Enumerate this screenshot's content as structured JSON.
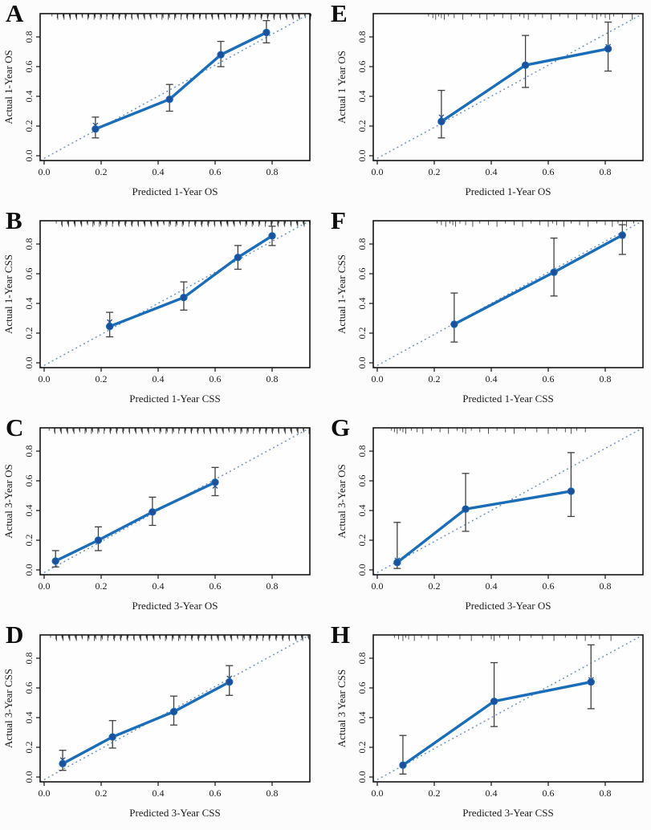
{
  "figure": {
    "colors": {
      "calibration_line": "#1a6db8",
      "point_fill": "#1c4f9c",
      "reference_dotted": "#6f94c9",
      "error_bar": "#404040",
      "axis": "#141414",
      "plot_background": "#fefefe",
      "page_background": "#fcfcfc"
    }
  },
  "chart_data": [
    {
      "type": "line",
      "letter": "A",
      "xlabel": "Predicted 1-Year OS",
      "ylabel": "Actual 1-Year OS",
      "xlim": [
        0,
        0.95
      ],
      "ylim": [
        0,
        0.95
      ],
      "x_tick_labels": [
        "0.0",
        "0.2",
        "0.4",
        "0.6",
        "0.8"
      ],
      "y_tick_labels": [
        "0.0",
        "0.2",
        "0.4",
        "0.6",
        "0.8"
      ],
      "reference_line": "identity (dotted)",
      "points": [
        {
          "x": 0.18,
          "y": 0.18,
          "lo": 0.12,
          "hi": 0.26,
          "bc": 0.205
        },
        {
          "x": 0.44,
          "y": 0.38,
          "lo": 0.3,
          "hi": 0.48,
          "bc": 0.38
        },
        {
          "x": 0.62,
          "y": 0.68,
          "lo": 0.6,
          "hi": 0.77,
          "bc": 0.68
        },
        {
          "x": 0.78,
          "y": 0.83,
          "lo": 0.76,
          "hi": 0.91,
          "bc": 0.83
        }
      ],
      "rug": {
        "dense": true,
        "start": 0.035,
        "end": 0.935,
        "count": 115
      }
    },
    {
      "type": "line",
      "letter": "B",
      "xlabel": "Predicted 1-Year CSS",
      "ylabel": "Actual 1-Year CSS",
      "xlim": [
        0,
        0.95
      ],
      "ylim": [
        0,
        0.95
      ],
      "x_tick_labels": [
        "0.0",
        "0.2",
        "0.4",
        "0.6",
        "0.8"
      ],
      "y_tick_labels": [
        "0.0",
        "0.2",
        "0.4",
        "0.6",
        "0.8"
      ],
      "reference_line": "identity (dotted)",
      "points": [
        {
          "x": 0.23,
          "y": 0.245,
          "lo": 0.175,
          "hi": 0.34,
          "bc": 0.275
        },
        {
          "x": 0.49,
          "y": 0.44,
          "lo": 0.355,
          "hi": 0.545,
          "bc": 0.44
        },
        {
          "x": 0.68,
          "y": 0.71,
          "lo": 0.63,
          "hi": 0.79,
          "bc": 0.71
        },
        {
          "x": 0.8,
          "y": 0.855,
          "lo": 0.79,
          "hi": 0.92,
          "bc": 0.855
        }
      ],
      "rug": {
        "dense": true,
        "start": 0.05,
        "end": 0.935,
        "count": 110
      }
    },
    {
      "type": "line",
      "letter": "C",
      "xlabel": "Predicted 3-Year OS",
      "ylabel": "Actual 3-Year OS",
      "xlim": [
        0,
        0.95
      ],
      "ylim": [
        0,
        0.95
      ],
      "x_tick_labels": [
        "0.0",
        "0.2",
        "0.4",
        "0.6",
        "0.8"
      ],
      "y_tick_labels": [
        "0.0",
        "0.2",
        "0.4",
        "0.6",
        "0.8"
      ],
      "reference_line": "identity (dotted)",
      "points": [
        {
          "x": 0.04,
          "y": 0.06,
          "lo": 0.02,
          "hi": 0.13,
          "bc": 0.06
        },
        {
          "x": 0.19,
          "y": 0.2,
          "lo": 0.13,
          "hi": 0.29,
          "bc": 0.2
        },
        {
          "x": 0.38,
          "y": 0.39,
          "lo": 0.3,
          "hi": 0.49,
          "bc": 0.39
        },
        {
          "x": 0.6,
          "y": 0.59,
          "lo": 0.5,
          "hi": 0.69,
          "bc": 0.565
        }
      ],
      "rug": {
        "dense": true,
        "start": 0.025,
        "end": 0.93,
        "count": 115
      }
    },
    {
      "type": "line",
      "letter": "D",
      "xlabel": "Predicted 3-Year CSS",
      "ylabel": "Actual 3-Year CSS",
      "xlim": [
        0,
        0.95
      ],
      "ylim": [
        0,
        0.95
      ],
      "x_tick_labels": [
        "0.0",
        "0.2",
        "0.4",
        "0.6",
        "0.8"
      ],
      "y_tick_labels": [
        "0.0",
        "0.2",
        "0.4",
        "0.6",
        "0.8"
      ],
      "reference_line": "identity (dotted)",
      "points": [
        {
          "x": 0.065,
          "y": 0.09,
          "lo": 0.045,
          "hi": 0.18,
          "bc": 0.115
        },
        {
          "x": 0.24,
          "y": 0.27,
          "lo": 0.195,
          "hi": 0.38,
          "bc": 0.27
        },
        {
          "x": 0.455,
          "y": 0.44,
          "lo": 0.35,
          "hi": 0.545,
          "bc": 0.44
        },
        {
          "x": 0.65,
          "y": 0.64,
          "lo": 0.55,
          "hi": 0.75,
          "bc": 0.665
        }
      ],
      "rug": {
        "dense": true,
        "start": 0.03,
        "end": 0.93,
        "count": 110
      }
    },
    {
      "type": "line",
      "letter": "E",
      "xlabel": "Predicted 1-Year OS",
      "ylabel": "Actual 1 Year OS",
      "xlim": [
        0,
        0.95
      ],
      "ylim": [
        0,
        0.95
      ],
      "x_tick_labels": [
        "0.0",
        "0.2",
        "0.4",
        "0.6",
        "0.8"
      ],
      "y_tick_labels": [
        "0.0",
        "0.2",
        "0.4",
        "0.6",
        "0.8"
      ],
      "reference_line": "identity (dotted)",
      "points": [
        {
          "x": 0.225,
          "y": 0.23,
          "lo": 0.12,
          "hi": 0.44,
          "bc": 0.26
        },
        {
          "x": 0.52,
          "y": 0.61,
          "lo": 0.46,
          "hi": 0.81,
          "bc": 0.61
        },
        {
          "x": 0.81,
          "y": 0.72,
          "lo": 0.57,
          "hi": 0.9,
          "bc": 0.735
        }
      ],
      "rug": [
        0.18,
        0.195,
        0.205,
        0.215,
        0.225,
        0.235,
        0.25,
        0.27,
        0.3,
        0.33,
        0.36,
        0.385,
        0.41,
        0.44,
        0.47,
        0.5,
        0.515,
        0.53,
        0.555,
        0.58,
        0.61,
        0.64,
        0.67,
        0.7,
        0.73,
        0.755,
        0.77,
        0.785,
        0.8,
        0.815,
        0.83,
        0.86,
        0.895
      ]
    },
    {
      "type": "line",
      "letter": "F",
      "xlabel": "Predicted 1-Year CSS",
      "ylabel": "Actual 1-Year CSS",
      "xlim": [
        0,
        0.95
      ],
      "ylim": [
        0,
        0.95
      ],
      "x_tick_labels": [
        "0.0",
        "0.2",
        "0.4",
        "0.6",
        "0.8"
      ],
      "y_tick_labels": [
        "0.0",
        "0.2",
        "0.4",
        "0.6",
        "0.8"
      ],
      "reference_line": "identity (dotted)",
      "points": [
        {
          "x": 0.27,
          "y": 0.26,
          "lo": 0.14,
          "hi": 0.47,
          "bc": 0.26
        },
        {
          "x": 0.62,
          "y": 0.61,
          "lo": 0.45,
          "hi": 0.84,
          "bc": 0.61
        },
        {
          "x": 0.86,
          "y": 0.86,
          "lo": 0.73,
          "hi": 0.93,
          "bc": 0.855
        }
      ],
      "rug": [
        0.21,
        0.225,
        0.24,
        0.255,
        0.265,
        0.275,
        0.29,
        0.31,
        0.335,
        0.36,
        0.39,
        0.42,
        0.45,
        0.48,
        0.51,
        0.54,
        0.57,
        0.6,
        0.615,
        0.63,
        0.655,
        0.68,
        0.71,
        0.74,
        0.77,
        0.8,
        0.825,
        0.845,
        0.86,
        0.875,
        0.9
      ]
    },
    {
      "type": "line",
      "letter": "G",
      "xlabel": "Predicted 3-Year OS",
      "ylabel": "Actual 3-Year OS",
      "xlim": [
        0,
        0.95
      ],
      "ylim": [
        0,
        0.95
      ],
      "x_tick_labels": [
        "0.0",
        "0.2",
        "0.4",
        "0.6",
        "0.8"
      ],
      "y_tick_labels": [
        "0.0",
        "0.2",
        "0.4",
        "0.6",
        "0.8"
      ],
      "reference_line": "identity (dotted)",
      "points": [
        {
          "x": 0.07,
          "y": 0.05,
          "lo": 0.01,
          "hi": 0.32,
          "bc": 0.065
        },
        {
          "x": 0.31,
          "y": 0.41,
          "lo": 0.26,
          "hi": 0.65,
          "bc": 0.41
        },
        {
          "x": 0.68,
          "y": 0.53,
          "lo": 0.36,
          "hi": 0.79,
          "bc": 0.53
        }
      ],
      "rug": [
        0.05,
        0.06,
        0.07,
        0.08,
        0.09,
        0.1,
        0.12,
        0.14,
        0.16,
        0.19,
        0.22,
        0.25,
        0.28,
        0.3,
        0.31,
        0.33,
        0.36,
        0.39,
        0.42,
        0.45,
        0.48,
        0.52,
        0.56,
        0.6,
        0.63,
        0.66,
        0.68,
        0.7,
        0.73
      ]
    },
    {
      "type": "line",
      "letter": "H",
      "xlabel": "Predicted 3-Year CSS",
      "ylabel": "Actual 3 Year CSS",
      "xlim": [
        0,
        0.95
      ],
      "ylim": [
        0,
        0.95
      ],
      "x_tick_labels": [
        "0.0",
        "0.2",
        "0.4",
        "0.6",
        "0.8"
      ],
      "y_tick_labels": [
        "0.0",
        "0.2",
        "0.4",
        "0.6",
        "0.8"
      ],
      "reference_line": "identity (dotted)",
      "points": [
        {
          "x": 0.09,
          "y": 0.08,
          "lo": 0.02,
          "hi": 0.28,
          "bc": 0.08
        },
        {
          "x": 0.41,
          "y": 0.51,
          "lo": 0.34,
          "hi": 0.77,
          "bc": 0.51
        },
        {
          "x": 0.75,
          "y": 0.64,
          "lo": 0.46,
          "hi": 0.89,
          "bc": 0.655
        }
      ],
      "rug": [
        0.06,
        0.075,
        0.09,
        0.1,
        0.11,
        0.13,
        0.155,
        0.18,
        0.21,
        0.25,
        0.29,
        0.33,
        0.37,
        0.4,
        0.41,
        0.43,
        0.46,
        0.5,
        0.54,
        0.58,
        0.62,
        0.66,
        0.7,
        0.73,
        0.75,
        0.78,
        0.82
      ]
    }
  ]
}
